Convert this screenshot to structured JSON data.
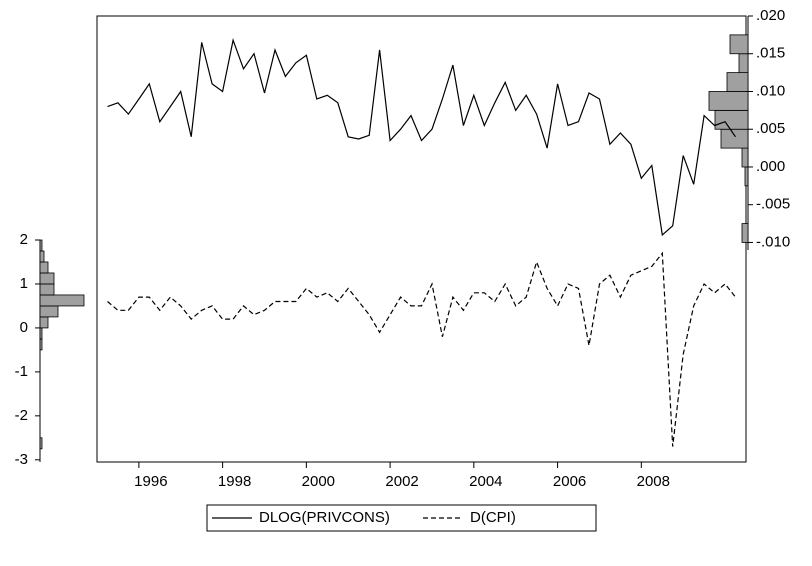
{
  "chart_data": {
    "type": "line",
    "x": [
      1995.25,
      1995.5,
      1995.75,
      1996,
      1996.25,
      1996.5,
      1996.75,
      1997,
      1997.25,
      1997.5,
      1997.75,
      1998,
      1998.25,
      1998.5,
      1998.75,
      1999,
      1999.25,
      1999.5,
      1999.75,
      2000,
      2000.25,
      2000.5,
      2000.75,
      2001,
      2001.25,
      2001.5,
      2001.75,
      2002,
      2002.25,
      2002.5,
      2002.75,
      2003,
      2003.25,
      2003.5,
      2003.75,
      2004,
      2004.25,
      2004.5,
      2004.75,
      2005,
      2005.25,
      2005.5,
      2005.75,
      2006,
      2006.25,
      2006.5,
      2006.75,
      2007,
      2007.25,
      2007.5,
      2007.75,
      2008,
      2008.25,
      2008.5,
      2008.75,
      2009,
      2009.25,
      2009.5,
      2009.75,
      2010,
      2010.25
    ],
    "series": [
      {
        "name": "DLOG(PRIVCONS)",
        "color": "#000000",
        "dash": false,
        "axis": "y2",
        "values": [
          0.008,
          0.0085,
          0.007,
          0.009,
          0.011,
          0.006,
          0.008,
          0.01,
          0.004,
          0.0165,
          0.011,
          0.01,
          0.0168,
          0.013,
          0.015,
          0.0098,
          0.0155,
          0.012,
          0.0138,
          0.0148,
          0.009,
          0.0095,
          0.0085,
          0.004,
          0.0037,
          0.0042,
          0.0155,
          0.0035,
          0.005,
          0.0068,
          0.0035,
          0.005,
          0.009,
          0.0135,
          0.0055,
          0.0095,
          0.0055,
          0.0085,
          0.0112,
          0.0075,
          0.0095,
          0.007,
          0.0025,
          0.011,
          0.0055,
          0.006,
          0.0098,
          0.009,
          0.003,
          0.0045,
          0.003,
          -0.0015,
          0.0002,
          -0.009,
          -0.0078,
          0.0015,
          -0.0023,
          0.0068,
          0.0055,
          0.006,
          0.004
        ]
      },
      {
        "name": "D(CPI)",
        "color": "#000000",
        "dash": true,
        "axis": "y",
        "values": [
          0.6,
          0.4,
          0.4,
          0.7,
          0.7,
          0.4,
          0.7,
          0.5,
          0.2,
          0.4,
          0.5,
          0.2,
          0.2,
          0.5,
          0.3,
          0.4,
          0.6,
          0.6,
          0.6,
          0.9,
          0.7,
          0.8,
          0.6,
          0.9,
          0.6,
          0.3,
          -0.1,
          0.3,
          0.7,
          0.5,
          0.5,
          1.0,
          -0.2,
          0.7,
          0.4,
          0.8,
          0.8,
          0.6,
          1.0,
          0.5,
          0.7,
          1.5,
          0.9,
          0.5,
          1.0,
          0.9,
          -0.4,
          1.0,
          1.2,
          0.7,
          1.2,
          1.3,
          1.4,
          1.7,
          -2.7,
          -0.6,
          0.5,
          1.0,
          0.8,
          1.0,
          0.7
        ]
      }
    ],
    "xlim": [
      1995,
      2010.5
    ],
    "xticks": [
      1996,
      1998,
      2000,
      2002,
      2004,
      2006,
      2008
    ],
    "ylim": [
      -3.05,
      2
    ],
    "yticks": [
      -3,
      -2,
      -1,
      0,
      1,
      2
    ],
    "y2lim": [
      -0.011,
      0.02
    ],
    "y2ticks": [
      {
        "value": -0.01,
        "label": "-.010"
      },
      {
        "value": -0.005,
        "label": "-.005"
      },
      {
        "value": 0,
        "label": ".000"
      },
      {
        "value": 0.005,
        "label": ".005"
      },
      {
        "value": 0.01,
        "label": ".010"
      },
      {
        "value": 0.015,
        "label": ".015"
      },
      {
        "value": 0.02,
        "label": ".020"
      }
    ],
    "histograms": [
      {
        "axis": "y2",
        "color": "#a0a0a0",
        "bins": [
          -0.01,
          -0.0075,
          -0.005,
          -0.0025,
          0,
          0.0025,
          0.005,
          0.0075,
          0.01,
          0.0125,
          0.015,
          0.0175
        ],
        "counts": [
          2,
          0,
          0,
          1,
          2,
          9,
          11,
          13,
          7,
          3,
          6
        ]
      },
      {
        "axis": "y",
        "color": "#a0a0a0",
        "bins": [
          -3,
          -2.75,
          -2.5,
          -2.25,
          -2,
          -1.75,
          -1.5,
          -1.25,
          -1,
          -0.75,
          -0.5,
          -0.25,
          0,
          0.25,
          0.5,
          0.75,
          1,
          1.25,
          1.5,
          1.75,
          2
        ],
        "counts": [
          0,
          1,
          0,
          0,
          0,
          0,
          0,
          0,
          0,
          0,
          1,
          1,
          4,
          9,
          22,
          7,
          7,
          4,
          2,
          1
        ]
      }
    ]
  }
}
